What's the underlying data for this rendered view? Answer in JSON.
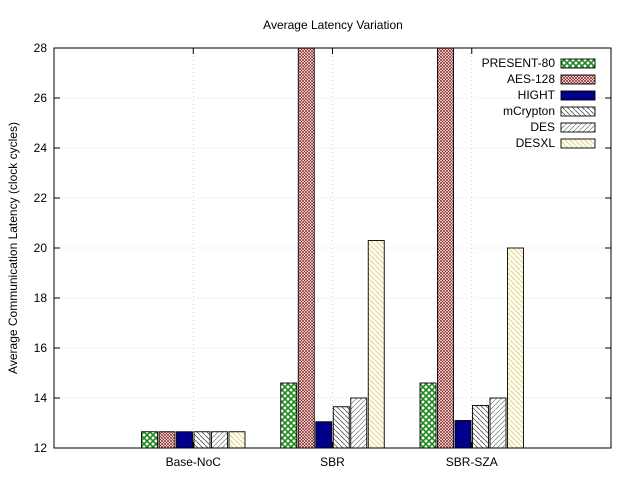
{
  "chart_data": {
    "type": "bar",
    "title": "Average Latency Variation",
    "xlabel": "",
    "ylabel": "Average Communication Latency (clock cycles)",
    "ylim": [
      12,
      28
    ],
    "yticks": [
      12,
      14,
      16,
      18,
      20,
      22,
      24,
      26,
      28
    ],
    "grid": true,
    "legend_position": "top-right",
    "categories": [
      "Base-NoC",
      "SBR",
      "SBR-SZA"
    ],
    "series": [
      {
        "name": "PRESENT-80",
        "values": [
          12.65,
          14.6,
          14.6
        ],
        "color": "#1a7a1a",
        "pattern": "checker-green"
      },
      {
        "name": "AES-128",
        "values": [
          12.65,
          28.0,
          28.0
        ],
        "color": "#8b1a1a",
        "pattern": "crosshatch-red"
      },
      {
        "name": "HIGHT",
        "values": [
          12.65,
          13.05,
          13.1
        ],
        "color": "#00008b",
        "pattern": "solid-navy"
      },
      {
        "name": "mCrypton",
        "values": [
          12.65,
          13.65,
          13.7
        ],
        "color": "#555555",
        "pattern": "diagonal-gray"
      },
      {
        "name": "DES",
        "values": [
          12.65,
          14.0,
          14.0
        ],
        "color": "#666666",
        "pattern": "diagonal-light"
      },
      {
        "name": "DESXL",
        "values": [
          12.65,
          20.3,
          20.0
        ],
        "color": "#e0d890",
        "pattern": "diagonal-cream"
      }
    ]
  }
}
